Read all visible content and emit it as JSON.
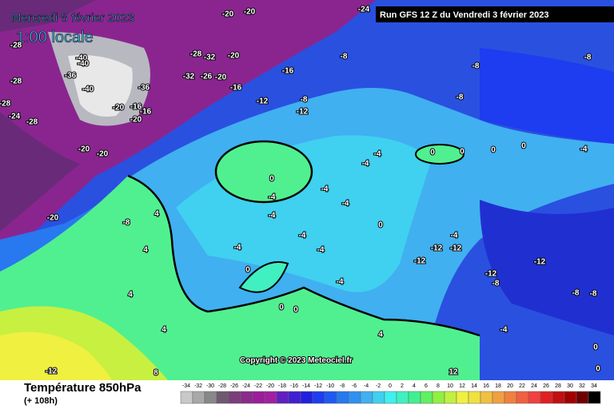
{
  "header": {
    "date": "Mercredi 8 février 2023",
    "time": "1:00 locale",
    "run": "Run GFS 12 Z du Vendredi 3 février 2023"
  },
  "copyright": "Copyright © 2023 Meteociel.fr",
  "map": {
    "contour_labels": [
      -28,
      -20,
      -20,
      -24,
      -28,
      -32,
      -20,
      -40,
      -40,
      -36,
      -40,
      -36,
      -32,
      -26,
      -20,
      -16,
      -16,
      -28,
      -28,
      -24,
      -28,
      -20,
      -16,
      -16,
      -20,
      -12,
      -8,
      -12,
      -20,
      -20,
      -8,
      -8,
      -8,
      -8,
      -4,
      -20,
      -8,
      4,
      4,
      4,
      4,
      4,
      -4,
      -4,
      -4,
      -4,
      -4,
      -4,
      -4,
      -4,
      0,
      0,
      0,
      0,
      0,
      0,
      0,
      0,
      0,
      -4,
      -4,
      -12,
      -12,
      -12,
      -12,
      -12,
      -8,
      -8,
      -8,
      -4,
      -4,
      0,
      0,
      -12,
      12,
      8
    ]
  },
  "legend": {
    "title": "Température 850hPa",
    "subtitle": "(+ 108h)",
    "scale": {
      "values": [
        -34,
        -32,
        -30,
        -28,
        -26,
        -24,
        -22,
        -20,
        -18,
        -16,
        -14,
        -12,
        -10,
        -8,
        -6,
        -4,
        -2,
        0,
        2,
        4,
        6,
        8,
        10,
        12,
        14,
        16,
        18,
        20,
        22,
        24,
        26,
        28,
        30,
        32,
        34
      ],
      "colors": [
        "#c8c8c8",
        "#a8a8a8",
        "#888888",
        "#6e5a6e",
        "#7a3f7a",
        "#8a2b8a",
        "#9a1e9a",
        "#a020a0",
        "#6020c0",
        "#4020d0",
        "#2020e0",
        "#1e3cf0",
        "#1e5af0",
        "#2878f0",
        "#3090f0",
        "#40b0f0",
        "#40d0f0",
        "#40f0f0",
        "#40f0c0",
        "#40f090",
        "#60f060",
        "#90f040",
        "#c0f040",
        "#f0f040",
        "#f0e040",
        "#f0c040",
        "#f0a040",
        "#f08040",
        "#f06040",
        "#f04040",
        "#e02020",
        "#c01010",
        "#a00000",
        "#700000",
        "#000000"
      ]
    }
  }
}
